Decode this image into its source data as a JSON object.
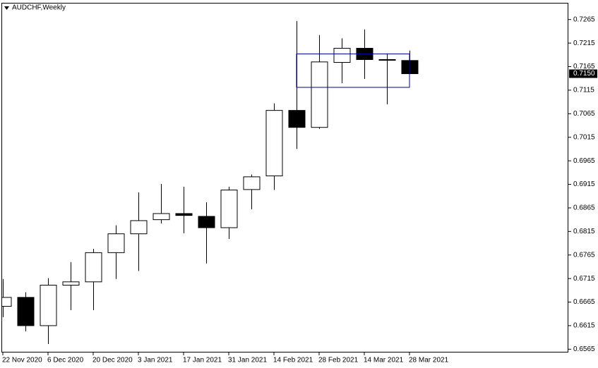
{
  "chart_data": {
    "type": "candlestick",
    "title": "AUDCHF,Weekly",
    "categories": [
      "22 Nov 2020",
      null,
      "6 Dec 2020",
      null,
      "20 Dec 2020",
      null,
      "3 Jan 2021",
      null,
      "17 Jan 2021",
      null,
      "31 Jan 2021",
      null,
      "14 Feb 2021",
      null,
      "28 Feb 2021",
      null,
      "14 Mar 2021",
      null,
      "28 Mar 2021"
    ],
    "open": [
      0.6656,
      0.6675,
      0.6615,
      0.6701,
      0.6708,
      0.677,
      0.681,
      0.684,
      0.6853,
      0.6847,
      0.6823,
      0.6904,
      0.6933,
      0.7072,
      0.7036,
      0.7174,
      0.7204,
      0.718,
      0.7178
    ],
    "high": [
      0.6714,
      0.6686,
      0.6716,
      0.675,
      0.6778,
      0.6828,
      0.6898,
      0.6916,
      0.691,
      0.6877,
      0.691,
      0.6936,
      0.7087,
      0.7262,
      0.7232,
      0.7225,
      0.7244,
      0.7193,
      0.7199
    ],
    "low": [
      0.6633,
      0.6603,
      0.6576,
      0.6648,
      0.6648,
      0.6714,
      0.6731,
      0.6832,
      0.6811,
      0.6747,
      0.6799,
      0.6862,
      0.6903,
      0.699,
      0.7033,
      0.713,
      0.7139,
      0.7085,
      0.715
    ],
    "close": [
      0.6675,
      0.6615,
      0.6701,
      0.6708,
      0.677,
      0.681,
      0.6838,
      0.6853,
      0.6849,
      0.6823,
      0.6903,
      0.6931,
      0.7072,
      0.7036,
      0.7175,
      0.7204,
      0.718,
      0.718,
      0.715
    ],
    "bull_color": "#ffffff",
    "bear_color": "#000000",
    "ylim": [
      0.6558,
      0.7299
    ],
    "yticks": [
      0.7265,
      0.7215,
      0.7165,
      0.7115,
      0.7065,
      0.7015,
      0.6965,
      0.6915,
      0.6865,
      0.6815,
      0.6765,
      0.6715,
      0.6665,
      0.6615,
      0.6565
    ],
    "last_price": {
      "value": 0.715,
      "label": "0.7150"
    },
    "rectangle": {
      "from": 13,
      "to": 18,
      "top": 0.7192,
      "bottom": 0.7121,
      "color": "#0000a0"
    }
  }
}
